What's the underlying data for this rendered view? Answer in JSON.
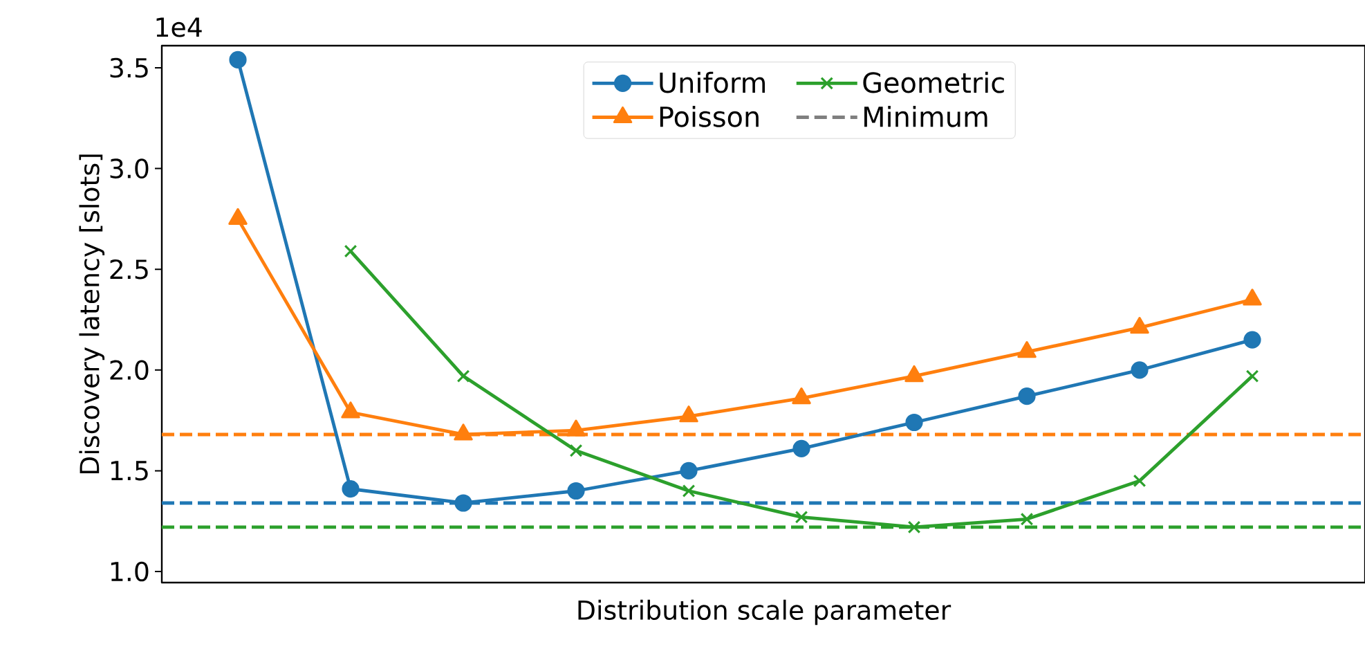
{
  "chart_data": {
    "type": "line",
    "xlabel": "Distribution scale parameter",
    "ylabel": "Discovery latency [slots]",
    "annotations": [
      "1e4"
    ],
    "categories": [
      null,
      null,
      null,
      null,
      null,
      null,
      null,
      null,
      null,
      null
    ],
    "ylim": [
      0.945,
      3.61
    ],
    "yticks": [
      {
        "value": 1,
        "label": "1.0"
      },
      {
        "value": 1.5,
        "label": "1.5"
      },
      {
        "value": 2,
        "label": "2.0"
      },
      {
        "value": 2.5,
        "label": "2.5"
      },
      {
        "value": 3,
        "label": "3.0"
      },
      {
        "value": 3.5,
        "label": "3.5"
      }
    ],
    "grid": false,
    "legend": "top",
    "series": [
      {
        "name": "Uniform",
        "marker": "circle",
        "color": "#1f77b4",
        "values": [
          3.54,
          1.41,
          1.34,
          1.4,
          1.5,
          1.61,
          1.74,
          1.87,
          2.0,
          2.15
        ]
      },
      {
        "name": "Poisson",
        "marker": "triangle",
        "color": "#ff7f0e",
        "values": [
          2.75,
          1.79,
          1.68,
          1.7,
          1.77,
          1.86,
          1.97,
          2.09,
          2.21,
          2.35
        ]
      },
      {
        "name": "Geometric",
        "marker": "cross",
        "color": "#2ca02c",
        "values": [
          null,
          2.59,
          1.97,
          1.6,
          1.4,
          1.27,
          1.22,
          1.26,
          1.45,
          1.97
        ]
      },
      {
        "name": "Minimum",
        "marker": "none",
        "line_style": "dashed",
        "color": "#7f7f7f",
        "values": [
          null,
          null,
          null,
          null,
          null,
          null,
          null,
          null,
          null,
          null
        ]
      }
    ],
    "ref_lines": [
      {
        "axis": "y",
        "value": 1.68,
        "color": "#ff7f0e",
        "line_style": "dashed"
      },
      {
        "axis": "y",
        "value": 1.34,
        "color": "#1f77b4",
        "line_style": "dashed"
      },
      {
        "axis": "y",
        "value": 1.22,
        "color": "#2ca02c",
        "line_style": "dashed"
      }
    ]
  }
}
